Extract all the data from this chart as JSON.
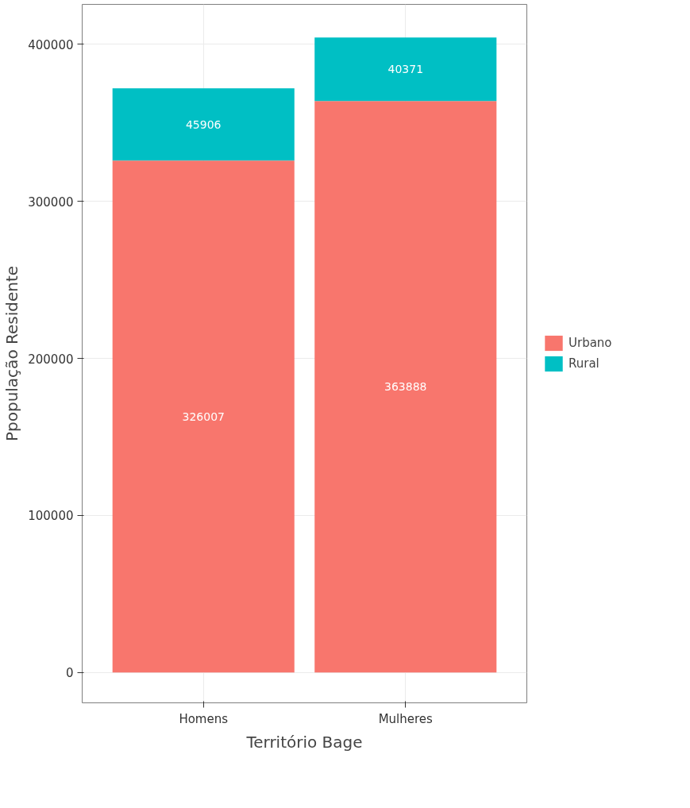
{
  "chart_data": {
    "type": "bar",
    "stacked": true,
    "categories": [
      "Homens",
      "Mulheres"
    ],
    "series": [
      {
        "name": "Urbano",
        "color": "#f8766d",
        "values": [
          326007,
          363888
        ]
      },
      {
        "name": "Rural",
        "color": "#00bfc4",
        "values": [
          45906,
          40371
        ]
      }
    ],
    "xlabel": "Território Bage",
    "ylabel": "Ppopulação Residente",
    "ylim": [
      -19300,
      425400
    ],
    "yticks": [
      0,
      100000,
      200000,
      300000,
      400000
    ],
    "grid": true,
    "legend": "right",
    "data_labels": true
  }
}
